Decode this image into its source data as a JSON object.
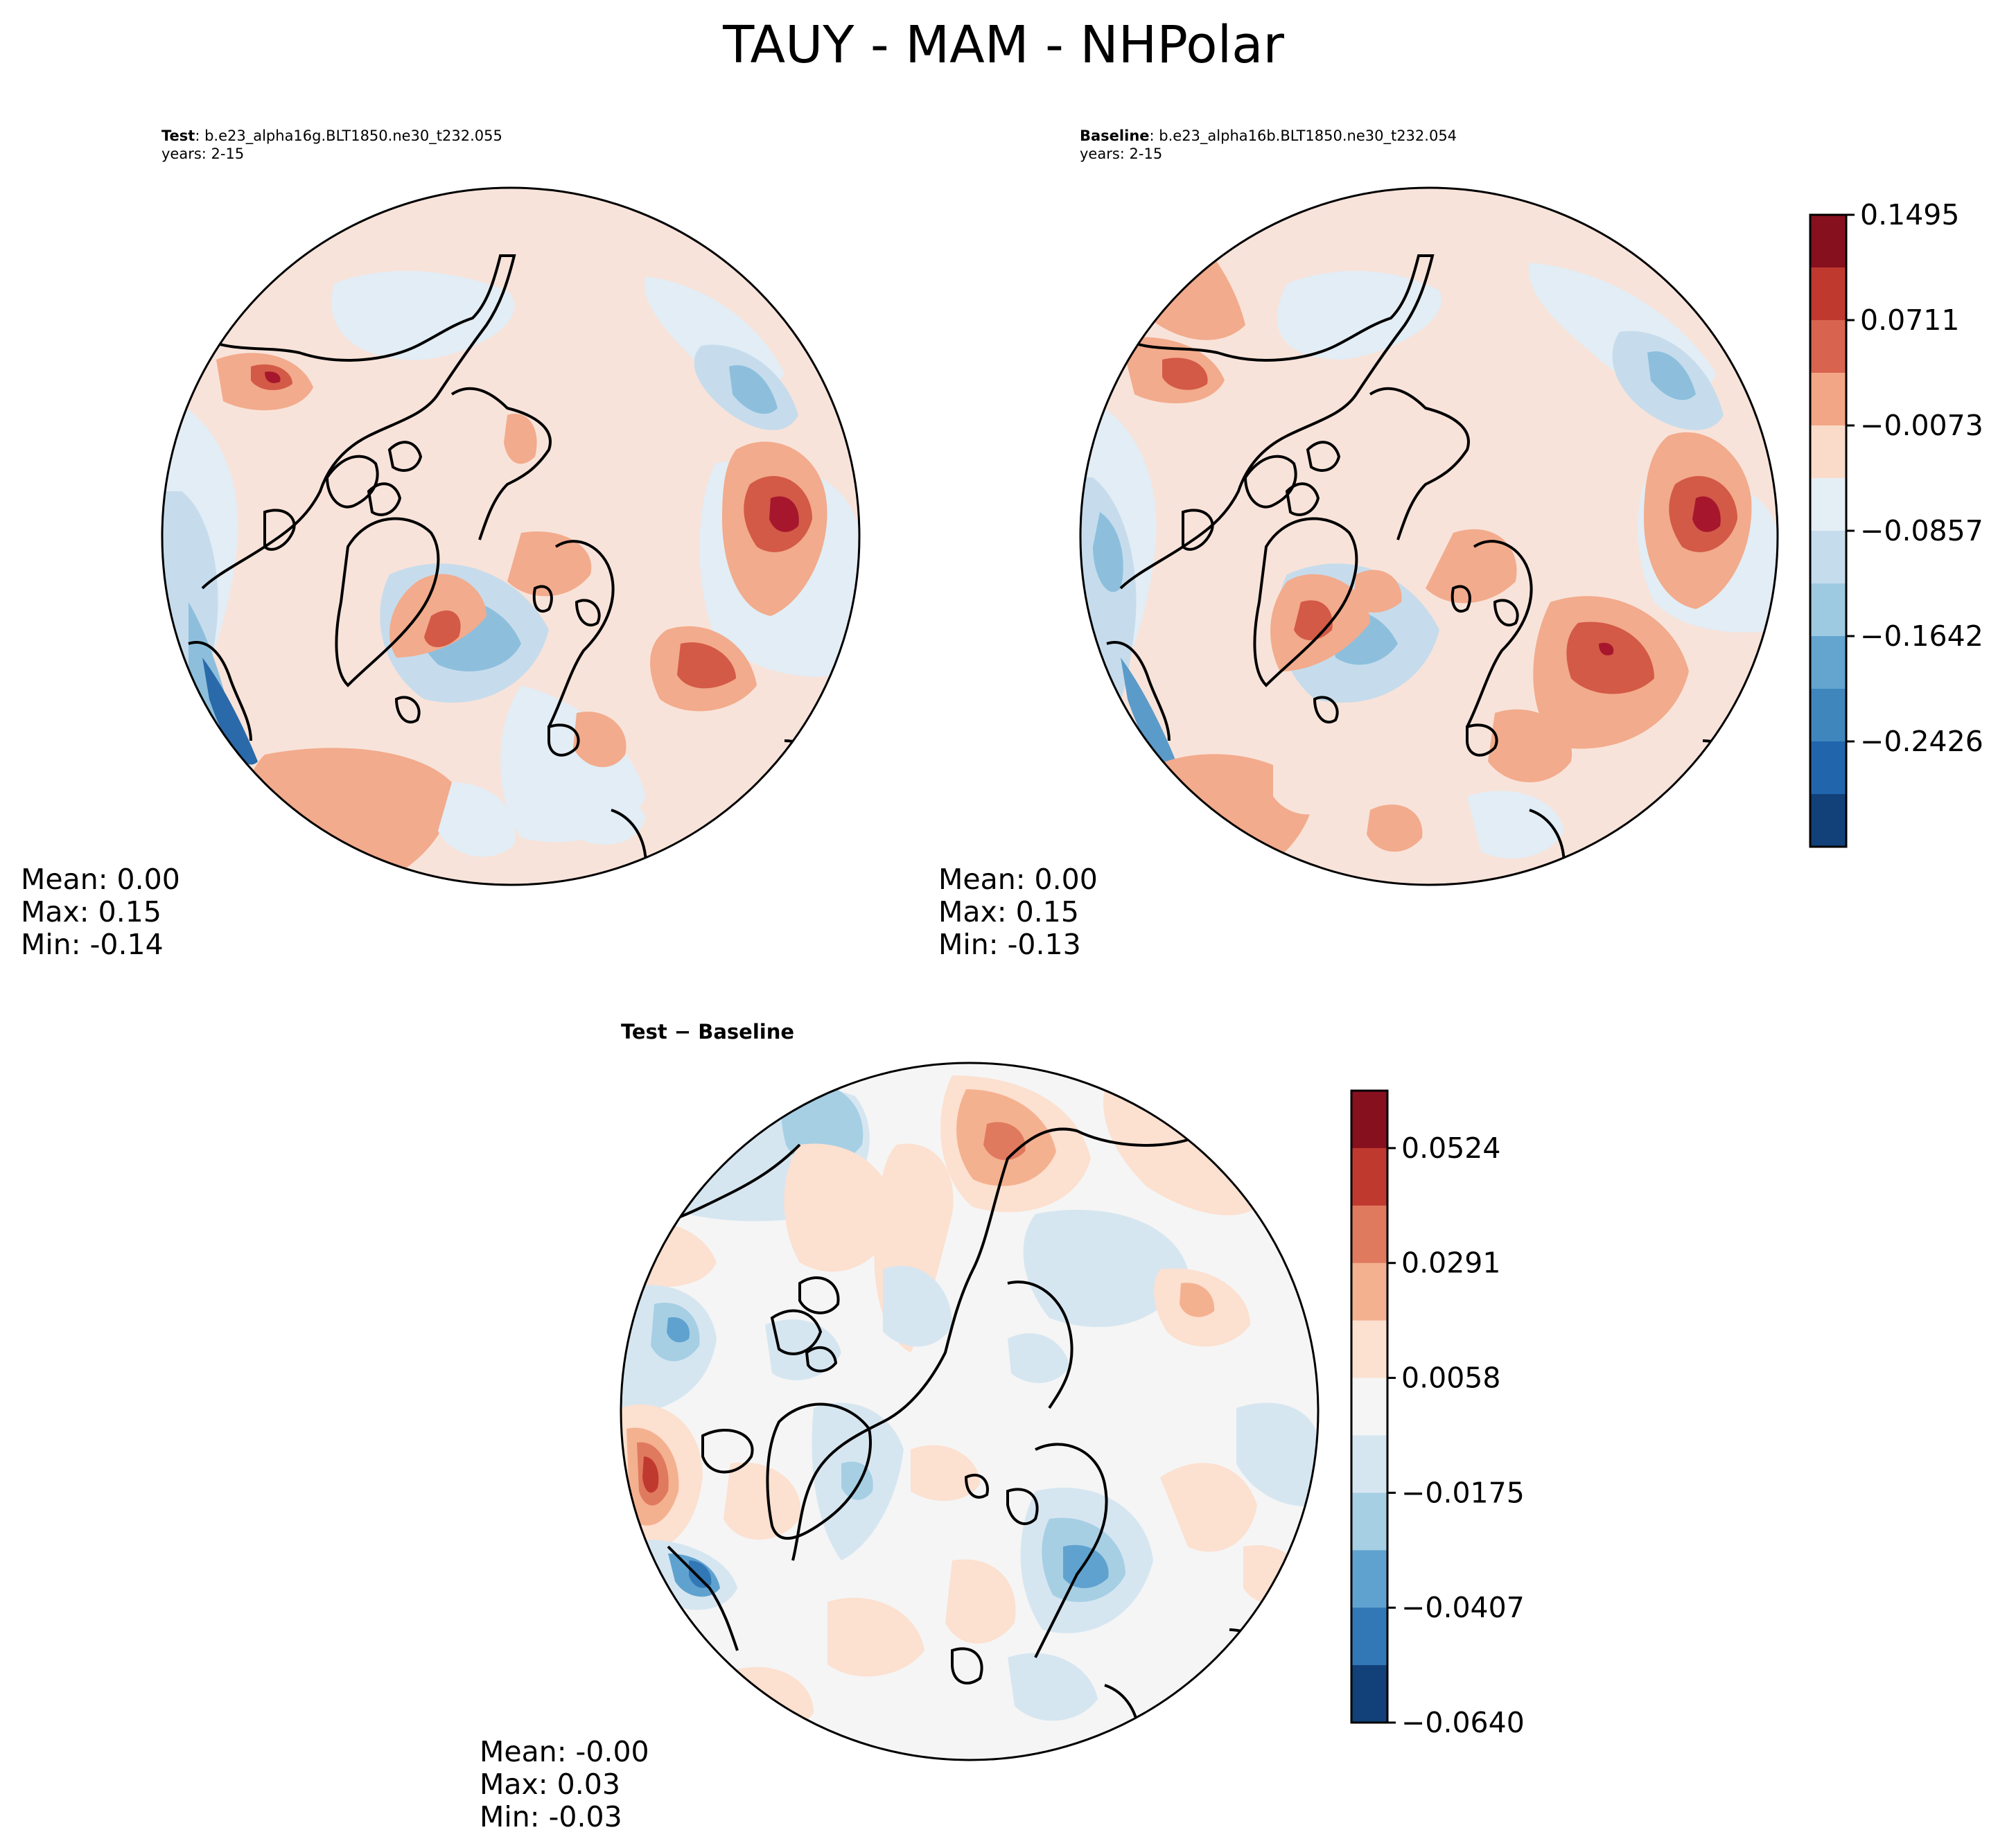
{
  "figure": {
    "title": "TAUY - MAM - NHPolar"
  },
  "panels": {
    "test": {
      "label": "Test",
      "case": ": b.e23_alpha16g.BLT1850.ne30_t232.055",
      "years": "years: 2-15",
      "mean": "Mean:  0.00",
      "max": "Max:  0.15",
      "min": "Min: -0.14"
    },
    "baseline": {
      "label": "Baseline",
      "case": ": b.e23_alpha16b.BLT1850.ne30_t232.054",
      "years": "years: 2-15",
      "mean": "Mean:  0.00",
      "max": "Max:  0.15",
      "min": "Min: -0.13"
    },
    "diff": {
      "title": "Test − Baseline",
      "mean": "Mean: -0.00",
      "max": "Max:  0.03",
      "min": "Min: -0.03"
    }
  },
  "chart_data": [
    {
      "type": "heatmap",
      "title": "Test",
      "projection": "north polar stereographic",
      "colorbar_levels": [
        0.1495,
        0.0711,
        -0.0073,
        -0.0857,
        -0.1642,
        -0.2426
      ],
      "stats": {
        "mean": 0.0,
        "max": 0.15,
        "min": -0.14
      }
    },
    {
      "type": "heatmap",
      "title": "Baseline",
      "projection": "north polar stereographic",
      "colorbar_levels": [
        0.1495,
        0.0711,
        -0.0073,
        -0.0857,
        -0.1642,
        -0.2426
      ],
      "stats": {
        "mean": 0.0,
        "max": 0.15,
        "min": -0.13
      }
    },
    {
      "type": "heatmap",
      "title": "Test − Baseline",
      "projection": "north polar stereographic",
      "colorbar_levels": [
        0.0524,
        0.0291,
        0.0058,
        -0.0175,
        -0.0407,
        -0.064
      ],
      "stats": {
        "mean": -0.0,
        "max": 0.03,
        "min": -0.03
      }
    }
  ],
  "colorbars": {
    "main": {
      "ticks": [
        "0.1495",
        "0.0711",
        "−0.0073",
        "−0.0857",
        "−0.1642",
        "−0.2426"
      ],
      "colors": [
        "#87101f",
        "#c0392f",
        "#d8644f",
        "#f2a685",
        "#fadbc9",
        "#e4eef5",
        "#c5dcec",
        "#9ecae1",
        "#63a5cf",
        "#3f86bd",
        "#2166ac",
        "#114178"
      ]
    },
    "diff": {
      "ticks": [
        "0.0524",
        "0.0291",
        "0.0058",
        "−0.0175",
        "−0.0407",
        "−0.0640"
      ],
      "colors": [
        "#87101f",
        "#c0392f",
        "#e07a5f",
        "#f4b190",
        "#fce0d0",
        "#f5f5f5",
        "#d6e6f1",
        "#a6cfe4",
        "#5fa2cf",
        "#3278b6",
        "#114178"
      ]
    }
  },
  "palette": {
    "light_red": "#f8e3da",
    "salmon": "#f2ab8c",
    "red": "#d35a47",
    "dark_red": "#a6172d",
    "pale_blue": "#e2edf5",
    "light_blue": "#c6dcec",
    "blue": "#8dbfdd",
    "mid_blue": "#5b9bc9",
    "dark_blue": "#2a6aaa",
    "neutral": "#f5f5f5",
    "coast": "#000000"
  }
}
